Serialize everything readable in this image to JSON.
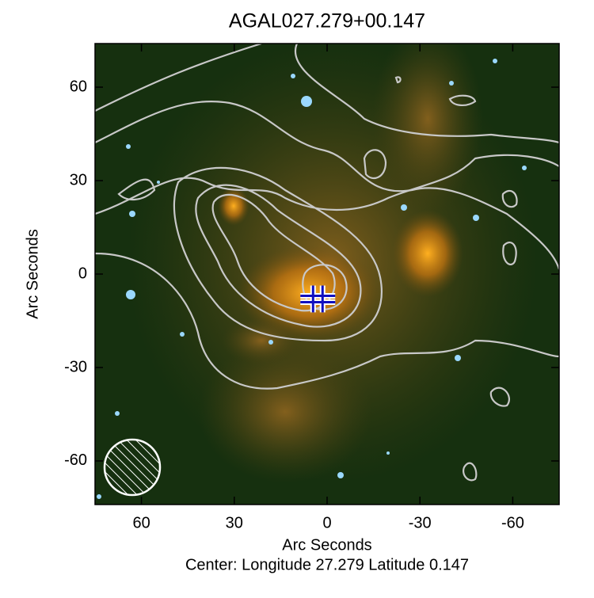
{
  "chart_data": {
    "type": "image",
    "title": "AGAL027.279+00.147",
    "xlabel": "Arc Seconds",
    "ylabel": "Arc Seconds",
    "footer": "Center:  Longitude 27.279 Latitude 0.147",
    "xlim": [
      75,
      -75
    ],
    "xticks": [
      60,
      30,
      0,
      -30,
      -60
    ],
    "ylim": [
      -74,
      74
    ],
    "yticks": [
      -60,
      -30,
      0,
      30,
      60
    ],
    "marker": {
      "x": 3,
      "y": -8,
      "color": "#1010c0"
    }
  }
}
